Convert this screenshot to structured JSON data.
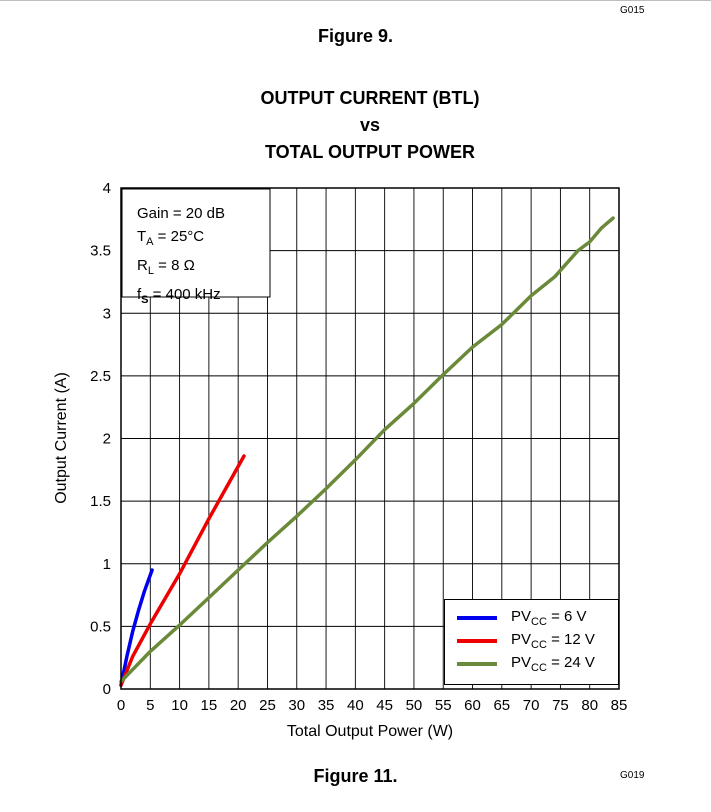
{
  "header": {
    "top_code": "G015",
    "figure_above": "Figure 9."
  },
  "footer": {
    "bottom_code": "G019",
    "figure_caption": "Figure 11."
  },
  "conditions": {
    "gain": "Gain = 20 dB",
    "ta_label": "T",
    "ta_sub": "A",
    "ta_value": " = 25°C",
    "rl_label": "R",
    "rl_sub": "L",
    "rl_value": " = 8 Ω",
    "fs_label": "f",
    "fs_sub": "S",
    "fs_value": " = 400 kHz"
  },
  "chart_data": {
    "type": "line",
    "title": [
      "OUTPUT CURRENT (BTL)",
      "vs",
      "TOTAL OUTPUT POWER"
    ],
    "xlabel": "Total Output Power (W)",
    "ylabel": "Output Current (A)",
    "xlim": [
      0,
      85
    ],
    "ylim": [
      0,
      4
    ],
    "xticks": [
      "0",
      "5",
      "10",
      "15",
      "20",
      "25",
      "30",
      "35",
      "40",
      "45",
      "50",
      "55",
      "60",
      "65",
      "70",
      "75",
      "80",
      "85"
    ],
    "yticks": [
      "0",
      "0.5",
      "1",
      "1.5",
      "2",
      "2.5",
      "3",
      "3.5",
      "4"
    ],
    "grid": true,
    "legend_position": "bottom-right",
    "series": [
      {
        "name_main": "PV",
        "name_sub": "CC",
        "name_rest": " = 6 V",
        "color": "#0000ee",
        "x": [
          0,
          1,
          2,
          3,
          4,
          5.3
        ],
        "y": [
          0.03,
          0.26,
          0.46,
          0.63,
          0.78,
          0.95
        ]
      },
      {
        "name_main": "PV",
        "name_sub": "CC",
        "name_rest": " = 12 V",
        "color": "#ee0000",
        "x": [
          0,
          2,
          5,
          10,
          15,
          21
        ],
        "y": [
          0.03,
          0.26,
          0.52,
          0.92,
          1.36,
          1.86
        ]
      },
      {
        "name_main": "PV",
        "name_sub": "CC",
        "name_rest": " = 24 V",
        "color": "#6a8a3a",
        "x": [
          0,
          5,
          10,
          15,
          20,
          25,
          30,
          35,
          40,
          45,
          50,
          55,
          60,
          65,
          70,
          74,
          78,
          80,
          82,
          84
        ],
        "y": [
          0.06,
          0.3,
          0.51,
          0.73,
          0.95,
          1.17,
          1.38,
          1.6,
          1.83,
          2.07,
          2.28,
          2.51,
          2.73,
          2.91,
          3.14,
          3.29,
          3.5,
          3.57,
          3.68,
          3.76
        ]
      }
    ]
  }
}
